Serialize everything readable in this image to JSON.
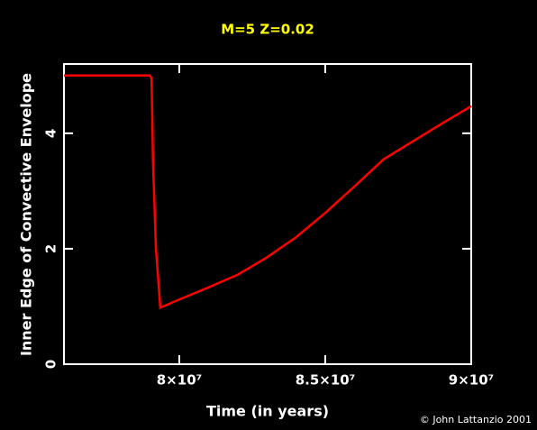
{
  "chart_data": {
    "type": "line",
    "title": "M=5 Z=0.02",
    "x_label": "Time (in years)",
    "y_label": "Inner Edge of Convective Envelope",
    "credit": "© John Lattanzio 2001",
    "x": [
      76050000,
      79000000,
      79050000,
      79100000,
      79200000,
      79350000,
      80000000,
      81000000,
      82000000,
      83000000,
      84000000,
      85000000,
      86000000,
      87000000,
      88000000,
      89000000,
      90000000
    ],
    "series": [
      {
        "name": "Inner Edge",
        "color": "#ff0000",
        "values": [
          5.0,
          5.0,
          4.95,
          3.5,
          2.0,
          0.98,
          1.12,
          1.33,
          1.55,
          1.85,
          2.2,
          2.62,
          3.08,
          3.55,
          3.86,
          4.17,
          4.47
        ]
      }
    ],
    "xlim": [
      76050000,
      90000000
    ],
    "ylim": [
      0,
      5.2
    ],
    "xticks": [
      {
        "value": 80000000,
        "label": "8×10⁷"
      },
      {
        "value": 85000000,
        "label": "8.5×10⁷"
      },
      {
        "value": 90000000,
        "label": "9×10⁷"
      }
    ],
    "yticks": [
      0,
      2,
      4
    ]
  }
}
